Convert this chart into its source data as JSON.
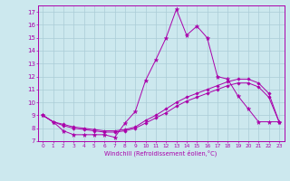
{
  "xlabel": "Windchill (Refroidissement éolien,°C)",
  "xlim": [
    -0.5,
    23.5
  ],
  "ylim": [
    7,
    17.5
  ],
  "xtick_labels": [
    "0",
    "1",
    "2",
    "3",
    "4",
    "5",
    "6",
    "7",
    "8",
    "9",
    "10",
    "11",
    "12",
    "13",
    "14",
    "15",
    "16",
    "17",
    "18",
    "19",
    "20",
    "21",
    "22",
    "23"
  ],
  "xtick_vals": [
    0,
    1,
    2,
    3,
    4,
    5,
    6,
    7,
    8,
    9,
    10,
    11,
    12,
    13,
    14,
    15,
    16,
    17,
    18,
    19,
    20,
    21,
    22,
    23
  ],
  "ytick_vals": [
    7,
    8,
    9,
    10,
    11,
    12,
    13,
    14,
    15,
    16,
    17
  ],
  "background_color": "#cce8ee",
  "grid_color": "#aaccd6",
  "line_color": "#aa00aa",
  "line1_y": [
    9.0,
    8.5,
    7.8,
    7.5,
    7.5,
    7.5,
    7.5,
    7.3,
    8.4,
    9.3,
    11.7,
    13.3,
    15.0,
    17.2,
    15.2,
    15.9,
    15.0,
    12.0,
    11.8,
    10.5,
    9.5,
    8.5,
    8.5,
    8.5
  ],
  "line2_y": [
    9.0,
    8.5,
    8.3,
    8.1,
    8.0,
    7.9,
    7.8,
    7.8,
    7.9,
    8.1,
    8.6,
    9.0,
    9.5,
    10.0,
    10.4,
    10.7,
    11.0,
    11.3,
    11.6,
    11.8,
    11.8,
    11.5,
    10.7,
    8.5
  ],
  "line3_y": [
    9.0,
    8.5,
    8.2,
    8.0,
    7.9,
    7.8,
    7.7,
    7.7,
    7.8,
    8.0,
    8.4,
    8.8,
    9.2,
    9.7,
    10.1,
    10.4,
    10.7,
    11.0,
    11.3,
    11.5,
    11.5,
    11.2,
    10.4,
    8.5
  ]
}
